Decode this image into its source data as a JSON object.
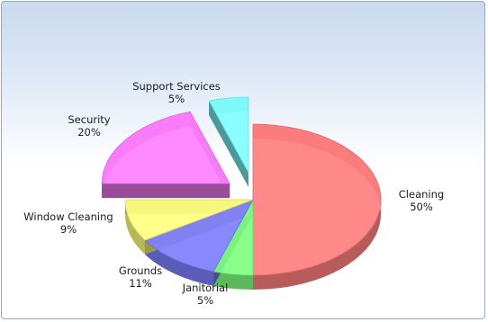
{
  "chart_data": {
    "type": "pie",
    "style": "3d-exploded",
    "title": "",
    "categories": [
      "Cleaning",
      "Janitorial",
      "Grounds",
      "Window Cleaning",
      "Security",
      "Support Services"
    ],
    "values": [
      50,
      5,
      11,
      9,
      20,
      5
    ],
    "labels": [
      "50%",
      "5%",
      "11%",
      "9%",
      "20%",
      "5%"
    ],
    "colors": [
      "#ff7f7f",
      "#7fff7f",
      "#7f7fff",
      "#ffff7f",
      "#ff7fff",
      "#7fffff"
    ],
    "exploded": [
      "Security",
      "Support Services"
    ],
    "legend": "none"
  }
}
